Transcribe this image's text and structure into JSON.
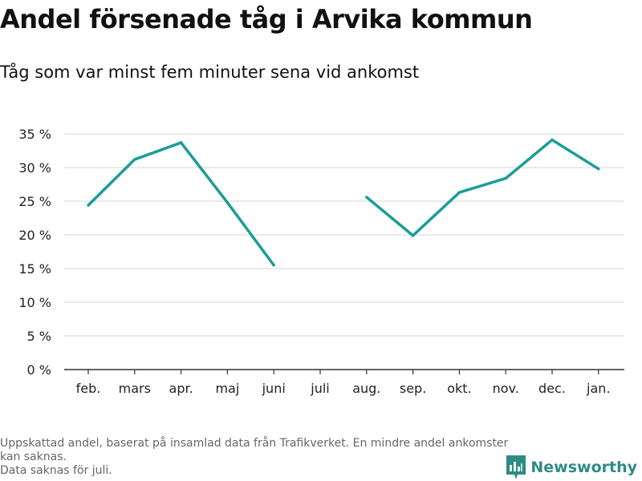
{
  "title": "Andel försenade tåg i Arvika kommun",
  "subtitle": "Tåg som var minst fem minuter sena vid ankomst",
  "footer": {
    "note_line1": "Uppskattad andel, baserat på insamlad data från Trafikverket. En mindre andel ankomster kan saknas.",
    "note_line2": "Data saknas för juli."
  },
  "logo": {
    "text": "Newsworthy",
    "icon": "newsworthy-logo-icon",
    "color": "#2e8b87"
  },
  "colors": {
    "line": "#1a9e96",
    "grid": "#dddddd",
    "axis": "#333333"
  },
  "chart_data": {
    "type": "line",
    "title": "Andel försenade tåg i Arvika kommun",
    "subtitle": "Tåg som var minst fem minuter sena vid ankomst",
    "xlabel": "",
    "ylabel": "",
    "categories": [
      "feb.",
      "mars",
      "apr.",
      "maj",
      "juni",
      "juli",
      "aug.",
      "sep.",
      "okt.",
      "nov.",
      "dec.",
      "jan."
    ],
    "series": [
      {
        "values": [
          24.4,
          31.2,
          33.7,
          24.8,
          15.5,
          null,
          25.6,
          19.9,
          26.3,
          28.4,
          34.1,
          29.8
        ]
      }
    ],
    "yticks": [
      0,
      5,
      10,
      15,
      20,
      25,
      30,
      35
    ],
    "ytick_labels": [
      "0 %",
      "5 %",
      "10 %",
      "15 %",
      "20 %",
      "25 %",
      "30 %",
      "35 %"
    ],
    "ylim": [
      0,
      35
    ],
    "grid": true,
    "legend": "none"
  }
}
